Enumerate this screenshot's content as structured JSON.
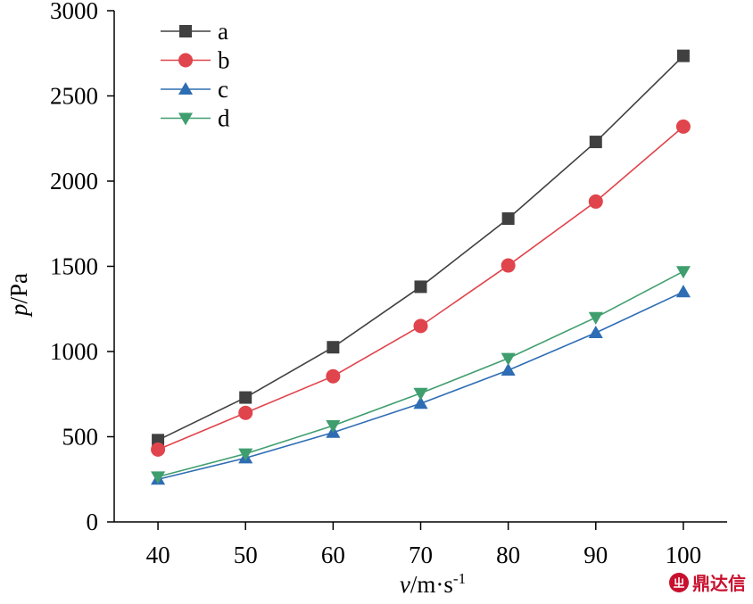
{
  "chart_data": {
    "type": "line",
    "x": [
      40,
      50,
      60,
      70,
      80,
      90,
      100
    ],
    "xticks": [
      "40",
      "50",
      "60",
      "70",
      "80",
      "90",
      "100"
    ],
    "yticks": [
      "0",
      "500",
      "1000",
      "1500",
      "2000",
      "2500",
      "3000"
    ],
    "xlim": [
      35,
      105
    ],
    "ylim": [
      0,
      3000
    ],
    "xlabel_var": "v",
    "xlabel_unit": "/m·s",
    "xlabel_sup": "-1",
    "ylabel_var": "p",
    "ylabel_unit": "/Pa",
    "legend_position": "top-left",
    "series": [
      {
        "name": "a",
        "marker": "square",
        "color": "#404040",
        "values": [
          480,
          730,
          1025,
          1380,
          1780,
          2230,
          2735
        ]
      },
      {
        "name": "b",
        "marker": "circle",
        "color": "#e0444c",
        "values": [
          425,
          640,
          855,
          1150,
          1505,
          1880,
          2320
        ]
      },
      {
        "name": "c",
        "marker": "triangle-up",
        "color": "#2e6db4",
        "values": [
          250,
          375,
          525,
          695,
          890,
          1110,
          1350
        ]
      },
      {
        "name": "d",
        "marker": "triangle-down",
        "color": "#3f9e6e",
        "values": [
          265,
          400,
          565,
          755,
          960,
          1200,
          1470
        ]
      }
    ]
  },
  "watermark": {
    "icon_glyph": "ㄓ",
    "text": "鼎达信"
  }
}
